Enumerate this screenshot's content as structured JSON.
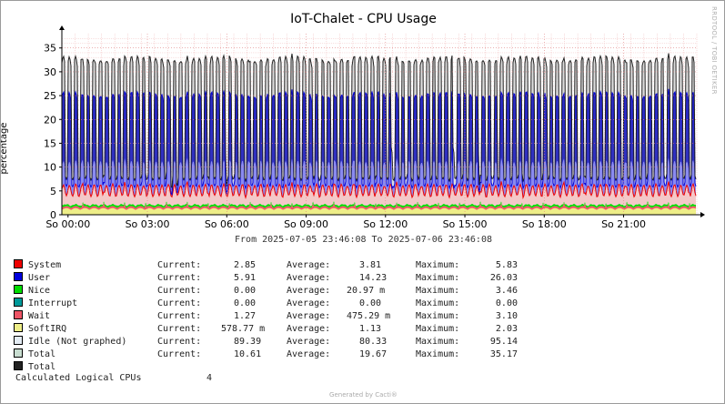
{
  "chart_data": {
    "type": "area",
    "title": "IoT-Chalet - CPU Usage",
    "ylabel": "percentage",
    "ylim": [
      0,
      38
    ],
    "yticks": [
      0,
      5,
      10,
      15,
      20,
      25,
      30,
      35
    ],
    "x_tick_labels": [
      "So 00:00",
      "So 03:00",
      "So 06:00",
      "So 09:00",
      "So 12:00",
      "So 15:00",
      "So 18:00",
      "So 21:00"
    ],
    "x_hours": [
      0,
      24
    ],
    "approx_pattern": {
      "period_minutes": 14,
      "user_high": 23,
      "user_low": 6,
      "nice_approx": 3.5,
      "system_approx": 3.8,
      "total_high": 30.5,
      "total_low": 7
    },
    "grid": true,
    "watermark": "RRDTOOL / TOBI OETIKER",
    "range_text": "From 2025-07-05 23:46:08 To 2025-07-06 23:46:08",
    "series": [
      {
        "name": "System",
        "color": "#ee0000",
        "current": "2.85",
        "average": "3.81",
        "maximum": "5.83"
      },
      {
        "name": "User",
        "color": "#0000dd",
        "current": "5.91",
        "average": "14.23",
        "maximum": "26.03"
      },
      {
        "name": "Nice",
        "color": "#00dd00",
        "current": "0.00",
        "average": "20.97 m",
        "maximum": "3.46"
      },
      {
        "name": "Interrupt",
        "color": "#009999",
        "current": "0.00",
        "average": "0.00",
        "maximum": "0.00"
      },
      {
        "name": "Wait",
        "color": "#ee5566",
        "current": "1.27",
        "average": "475.29 m",
        "maximum": "3.10"
      },
      {
        "name": "SoftIRQ",
        "color": "#eeee88",
        "current": "578.77 m",
        "average": "1.13",
        "maximum": "2.03"
      },
      {
        "name": "Idle (Not graphed)",
        "color": "#e4ecf4",
        "current": "89.39",
        "average": "80.33",
        "maximum": "95.14"
      },
      {
        "name": "Total",
        "color": "#c8ddd0",
        "current": "10.61",
        "average": "19.67",
        "maximum": "35.17"
      },
      {
        "name": "Total",
        "color": "#222222"
      }
    ],
    "labels": {
      "current": "Current:",
      "average": "Average:",
      "maximum": "Maximum:"
    },
    "footer_label": "Calculated Logical CPUs",
    "footer_value": "4",
    "generated": "Generated by Cacti®"
  }
}
